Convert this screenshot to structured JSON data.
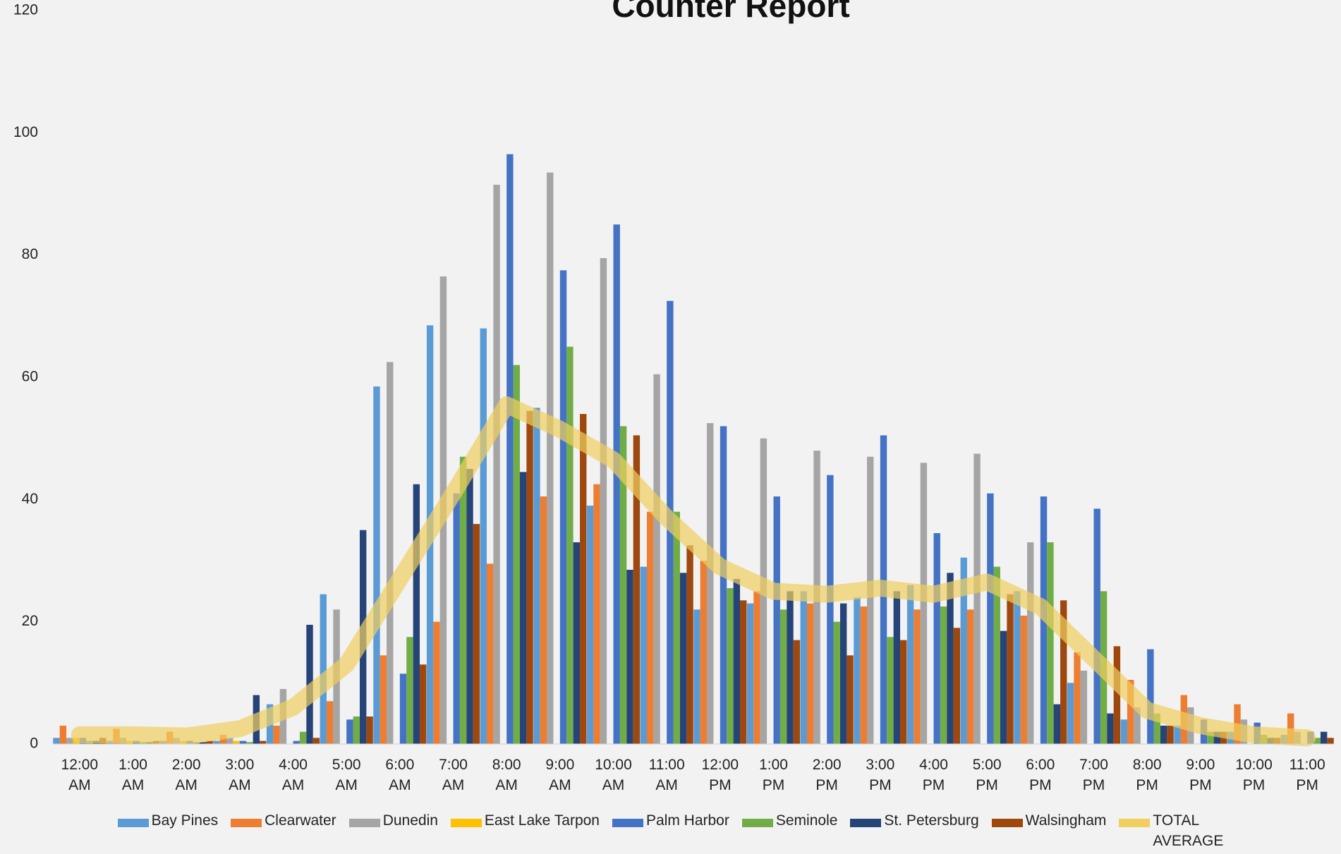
{
  "chart_data": {
    "type": "bar",
    "title": "Counter Report",
    "categories": [
      "12:00 AM",
      "1:00 AM",
      "2:00 AM",
      "3:00 AM",
      "4:00 AM",
      "5:00 AM",
      "6:00 AM",
      "7:00 AM",
      "8:00 AM",
      "9:00 AM",
      "10:00 AM",
      "11:00 AM",
      "12:00 PM",
      "1:00 PM",
      "2:00 PM",
      "3:00 PM",
      "4:00 PM",
      "5:00 PM",
      "6:00 PM",
      "7:00 PM",
      "8:00 PM",
      "9:00 PM",
      "10:00 PM",
      "11:00 PM"
    ],
    "series": [
      {
        "name": "Bay Pines",
        "color": "#5b9bd5",
        "values": [
          1,
          0.5,
          0.5,
          0.5,
          6.5,
          24.5,
          58.5,
          68.5,
          68,
          55,
          39,
          29,
          22,
          23,
          25,
          24,
          26,
          30.5,
          25,
          10,
          4,
          3,
          2,
          1.5
        ]
      },
      {
        "name": "Clearwater",
        "color": "#ed7d31",
        "values": [
          3,
          2.5,
          2,
          1.5,
          3,
          7,
          14.5,
          20,
          29.5,
          40.5,
          42.5,
          38,
          30,
          25,
          23,
          22.5,
          22,
          22,
          21,
          15,
          10.5,
          8,
          6.5,
          5
        ]
      },
      {
        "name": "Dunedin",
        "color": "#a5a5a5",
        "values": [
          1,
          1,
          1,
          1,
          9,
          22,
          62.5,
          76.5,
          91.5,
          93.5,
          79.5,
          60.5,
          52.5,
          50,
          48,
          47,
          46,
          47.5,
          33,
          12,
          6,
          6,
          4,
          2
        ]
      },
      {
        "name": "East Lake Tarpon",
        "color": "#ffc000",
        "values": [
          1,
          0.5,
          0.5,
          0.5,
          0,
          0,
          0,
          0,
          0,
          0,
          0,
          0,
          0,
          0,
          0,
          0,
          0,
          0,
          0,
          0,
          0,
          0,
          0,
          0
        ]
      },
      {
        "name": "Palm Harbor",
        "color": "#4472c4",
        "values": [
          1,
          0.5,
          0.5,
          0.5,
          0.5,
          4,
          11.5,
          41,
          96.5,
          77.5,
          85,
          72.5,
          52,
          40.5,
          44,
          50.5,
          34.5,
          41,
          40.5,
          38.5,
          15.5,
          4,
          3.5,
          2
        ]
      },
      {
        "name": "Seminole",
        "color": "#70ad47",
        "values": [
          0.5,
          0.3,
          0.3,
          0.3,
          2,
          4.5,
          17.5,
          47,
          62,
          65,
          52,
          38,
          25.5,
          22,
          20,
          17.5,
          22.5,
          29,
          33,
          25,
          5,
          2,
          1.5,
          1
        ]
      },
      {
        "name": "St. Petersburg",
        "color": "#264478",
        "values": [
          0.5,
          0.3,
          0.3,
          8,
          19.5,
          35,
          42.5,
          45,
          44.5,
          33,
          28.5,
          28,
          27,
          25,
          23,
          25,
          28,
          18.5,
          6.5,
          5,
          3,
          2,
          1,
          2
        ]
      },
      {
        "name": "Walsingham",
        "color": "#9e480e",
        "values": [
          1,
          0.5,
          0.5,
          0.5,
          1,
          4.5,
          13,
          36,
          54.5,
          54,
          50.5,
          32.5,
          23.5,
          17,
          14.5,
          17,
          19,
          24.5,
          23.5,
          16,
          3,
          2,
          1,
          1
        ]
      },
      {
        "name": "TOTAL AVERAGE",
        "type": "line",
        "color": "#f0cf5f",
        "values": [
          1.5,
          1.5,
          1.3,
          2.5,
          6,
          13,
          27,
          41,
          55.5,
          51.5,
          46.5,
          37,
          29,
          25,
          24.5,
          25.5,
          24.5,
          26.5,
          22.5,
          14,
          5.5,
          3,
          1.5,
          1
        ]
      }
    ],
    "ylim": [
      0,
      120
    ],
    "yticks": [
      0,
      20,
      40,
      60,
      80,
      100,
      120
    ],
    "legend": "bottom"
  }
}
